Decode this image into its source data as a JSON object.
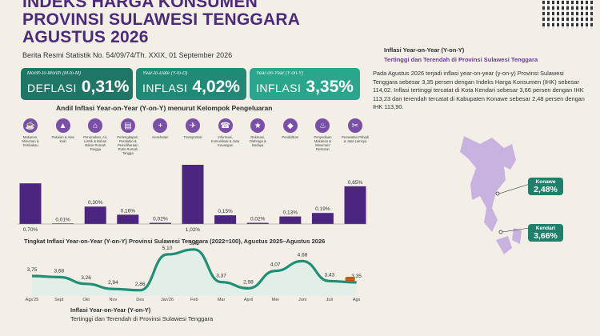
{
  "header": {
    "title": [
      "INDEKS HARGA KONSUMEN",
      "PROVINSI SULAWESI TENGGARA",
      "AGUSTUS 2026"
    ],
    "subtitle": "Berita Resmi Statistik No. 54/09/74/Th. XXIX, 01 September 2026"
  },
  "cards": [
    {
      "label": "Month-to-Month (M-to-M)",
      "kind": "DEFLASI",
      "value": "0,31%"
    },
    {
      "label": "Year-to-Date (Y-to-D)",
      "kind": "INFLASI",
      "value": "4,02%"
    },
    {
      "label": "Year-on-Year (Y-on-Y)",
      "kind": "INFLASI",
      "value": "3,35%"
    }
  ],
  "colors": {
    "purple": "#5b2d8c",
    "teal": "#1f7f6b",
    "background": "#f3eee6"
  },
  "chart_data": [
    {
      "type": "bar",
      "title": "Andil Inflasi Year-on-Year (Y-on-Y) menurut Kelompok Pengeluaran",
      "categories": [
        "Makanan, Minuman & Tembakau",
        "Pakaian & Alas Kaki",
        "Perumahan, Air, Listrik & Bahan Bakar Rumah Tangga",
        "Perlengkapan, Peralatan & Pemeliharaan Rutin Rumah Tangga",
        "Kesehatan",
        "Transportasi",
        "Informasi, Komunikasi & Jasa Keuangan",
        "Rekreasi, Olahraga & Budaya",
        "Pendidikan",
        "Penyediaan Makanan & Minuman/ Restoran",
        "Perawatan Pribadi & Jasa Lainnya"
      ],
      "icons": [
        "food-icon",
        "shirt-icon",
        "house-icon",
        "sofa-icon",
        "medical-icon",
        "plane-icon",
        "phone-icon",
        "runner-icon",
        "graduation-icon",
        "restaurant-icon",
        "scissors-icon"
      ],
      "values": [
        0.7,
        0.01,
        0.3,
        0.16,
        0.02,
        1.02,
        0.15,
        0.02,
        0.13,
        0.19,
        0.65
      ],
      "labels": [
        "0,70%",
        "0,01%",
        "0,30%",
        "0,16%",
        "0,02%",
        "1,02%",
        "0,15%",
        "0,02%",
        "0,13%",
        "0,19%",
        "0,65%"
      ],
      "ylim": [
        0,
        1.02
      ]
    },
    {
      "type": "line",
      "title": "Tingkat Inflasi Year-on-Year (Y-on-Y) Provinsi Sulawesi Tenggara (2022=100), Agustus 2025–Agustus 2026",
      "x": [
        "Ags'25",
        "Sept",
        "Okt",
        "Nov",
        "Des",
        "Jan'26",
        "Feb",
        "Mar",
        "April",
        "Mei",
        "Juni",
        "Juli",
        "Ags"
      ],
      "values": [
        3.75,
        3.68,
        3.26,
        2.94,
        2.86,
        5.1,
        5.41,
        3.37,
        2.98,
        4.07,
        4.68,
        3.43,
        3.35
      ],
      "labels": [
        "3,75",
        "3,68",
        "3,26",
        "2,94",
        "2,86",
        "5,10",
        "5,41",
        "3,37",
        "2,98",
        "4,07",
        "4,68",
        "3,43",
        "3,35"
      ],
      "ylim": [
        2.5,
        5.6
      ]
    }
  ],
  "right_panel": {
    "title": "Inflasi Year-on-Year (Y-on-Y)",
    "subtitle": "Tertinggi dan Terendah di Provinsi Sulawesi Tenggara",
    "paragraph": "Pada Agustus 2026 terjadi inflasi year-on-year (y-on-y) Provinsi Sulawesi Tenggara sebesar 3,35 persen dengan Indeks Harga Konsumen (IHK) sebesar 114,02. Inflasi tertinggi tercatat di Kota Kendari sebesar 3,66 persen dengan IHK 113,23 dan terendah tercatat di Kabupaten Konawe sebesar 2,48 persen dengan IHK 113,90.",
    "regions": [
      {
        "name": "Konawe",
        "value": "2,48%"
      },
      {
        "name": "Kendari",
        "value": "3,66%"
      }
    ]
  },
  "footer": {
    "title": "Inflasi Year-on-Year (Y-on-Y)",
    "subtitle": "Tertinggi dan Terendah di Provinsi Sulawesi Tenggara"
  }
}
